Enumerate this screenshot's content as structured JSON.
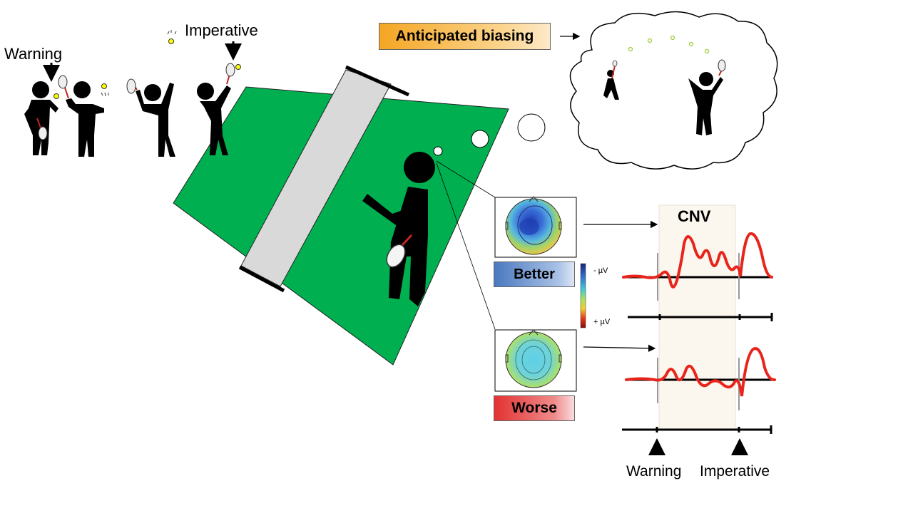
{
  "labels": {
    "warning_top": "Warning",
    "imperative_top": "Imperative",
    "anticipated": "Anticipated biasing",
    "cnv": "CNV",
    "better": "Better",
    "worse": "Worse",
    "scale_neg": "- µV",
    "scale_pos": "+ µV",
    "warning_bottom": "Warning",
    "imperative_bottom": "Imperative"
  },
  "colors": {
    "court": "#00b050",
    "net": "#d9d9d9",
    "cnv_window": "#fcf7ee",
    "erp_trace": "#e8241c",
    "better_label": "#4a78c0",
    "worse_label": "#e23232",
    "anticipated_label": "#f5a623"
  }
}
